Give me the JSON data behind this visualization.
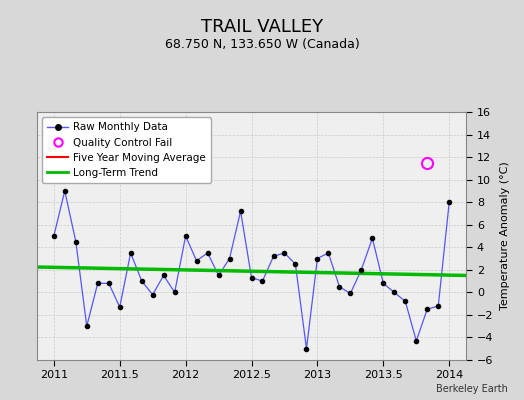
{
  "title": "TRAIL VALLEY",
  "subtitle": "68.750 N, 133.650 W (Canada)",
  "ylabel": "Temperature Anomaly (°C)",
  "watermark": "Berkeley Earth",
  "xlim": [
    2010.87,
    2014.13
  ],
  "ylim": [
    -6,
    16
  ],
  "yticks": [
    -6,
    -4,
    -2,
    0,
    2,
    4,
    6,
    8,
    10,
    12,
    14,
    16
  ],
  "xticks": [
    2011,
    2011.5,
    2012,
    2012.5,
    2013,
    2013.5,
    2014
  ],
  "fig_facecolor": "#d8d8d8",
  "ax_facecolor": "#efefef",
  "raw_x": [
    2011.0,
    2011.083,
    2011.167,
    2011.25,
    2011.333,
    2011.417,
    2011.5,
    2011.583,
    2011.667,
    2011.75,
    2011.833,
    2011.917,
    2012.0,
    2012.083,
    2012.167,
    2012.25,
    2012.333,
    2012.417,
    2012.5,
    2012.583,
    2012.667,
    2012.75,
    2012.833,
    2012.917,
    2013.0,
    2013.083,
    2013.167,
    2013.25,
    2013.333,
    2013.417,
    2013.5,
    2013.583,
    2013.667,
    2013.75,
    2013.833,
    2013.917,
    2014.0
  ],
  "raw_y": [
    5.0,
    9.0,
    4.5,
    -3.0,
    0.8,
    0.8,
    -1.3,
    3.5,
    1.0,
    -0.2,
    1.5,
    0.0,
    5.0,
    2.8,
    3.5,
    1.5,
    3.0,
    7.2,
    1.3,
    1.0,
    3.2,
    3.5,
    2.5,
    -5.0,
    3.0,
    3.5,
    0.5,
    -0.1,
    2.0,
    4.8,
    0.8,
    0.0,
    -0.8,
    -4.3,
    -1.5,
    -1.2,
    8.0
  ],
  "qc_fail_x": [
    2013.833
  ],
  "qc_fail_y": [
    11.5
  ],
  "trend_x": [
    2010.87,
    2014.13
  ],
  "trend_y": [
    2.25,
    1.5
  ],
  "raw_line_color": "#5555ff",
  "raw_marker_color": "#000000",
  "qc_color": "#ff00ff",
  "moving_avg_color": "#ff0000",
  "trend_color": "#00bb00",
  "grid_color": "#cccccc",
  "title_fontsize": 13,
  "subtitle_fontsize": 9,
  "ylabel_fontsize": 8,
  "tick_fontsize": 8,
  "legend_fontsize": 7.5
}
